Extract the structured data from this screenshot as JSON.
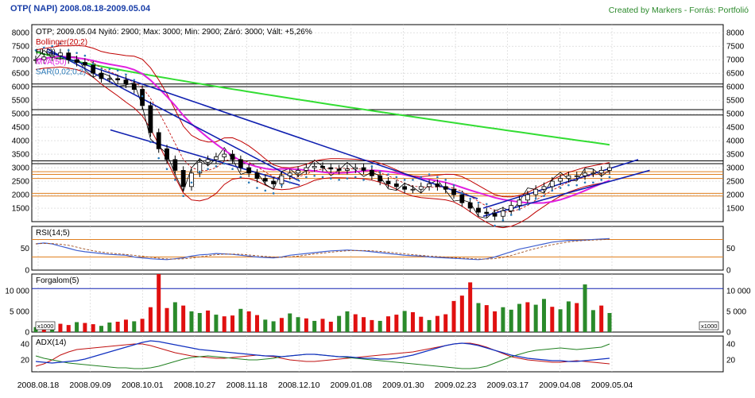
{
  "header": {
    "title": "OTP( NAPI)  2008.08.18-2009.05.04",
    "credit": "Created by Markers - Forrás: Portfolió"
  },
  "colors": {
    "title": "#1a3fa8",
    "credit": "#2c8a2c",
    "panel_border": "#000000",
    "grid": "#cfcfcf",
    "candle_up": "#ffffff",
    "candle_down": "#000000",
    "bollinger": "#c00000",
    "hl2": "#000000",
    "mva50": "#e020e0",
    "sar": "#2a7ab8",
    "long_ma": "#33dd33",
    "trend_blue": "#1020b0",
    "support": "#e08020",
    "rsi_line": "#4060d0",
    "rsi_signal": "#a05020",
    "volume_up": "#2a8a2a",
    "volume_down": "#e01010",
    "adx": "#1030c0",
    "di_plus": "#208020",
    "di_minus": "#c01010"
  },
  "chart_data": [
    {
      "id": "price",
      "type": "candlestick",
      "info_line": "OTP; 2009.05.04 Nyitó: 2900; Max: 3000; Min: 2900; Záró: 3000; Vált: +5,26%",
      "legend": [
        "Bollinger(20;2)",
        "HL(2)",
        "MVA(50)",
        "SAR(0,02;0,2)"
      ],
      "yticks": [
        1500,
        2000,
        2500,
        3000,
        3500,
        4000,
        4500,
        5000,
        5500,
        6000,
        6500,
        7000,
        7500,
        8000
      ],
      "ylim": [
        1000,
        8300
      ],
      "horizontal_levels_black": [
        6100,
        6000,
        5150,
        4950,
        3250,
        3150
      ],
      "horizontal_levels_orange": [
        2850,
        2750,
        2600,
        2050,
        1950
      ],
      "close_approx": [
        7000,
        7100,
        7150,
        7250,
        7000,
        6900,
        6800,
        6500,
        6300,
        6300,
        6250,
        6100,
        5900,
        5300,
        4300,
        3700,
        3300,
        2900,
        2300,
        2800,
        3200,
        3300,
        3400,
        3500,
        3300,
        3000,
        2800,
        2600,
        2500,
        2400,
        2700,
        2800,
        2900,
        3000,
        3050,
        3000,
        2950,
        2900,
        2950,
        3000,
        2900,
        2700,
        2500,
        2400,
        2300,
        2200,
        2200,
        2300,
        2400,
        2300,
        2200,
        2000,
        1700,
        1500,
        1350,
        1300,
        1200,
        1400,
        1600,
        1800,
        2000,
        2200,
        2300,
        2500,
        2600,
        2700,
        2700,
        2800,
        2800,
        2900,
        3000
      ]
    },
    {
      "id": "rsi",
      "type": "line",
      "title": "RSI(14;5)",
      "yticks": [
        0,
        50
      ],
      "ylim": [
        0,
        100
      ],
      "levels": [
        30,
        70
      ],
      "values_approx": [
        60,
        62,
        60,
        55,
        50,
        45,
        42,
        40,
        38,
        36,
        35,
        34,
        30,
        28,
        26,
        25,
        24,
        26,
        28,
        32,
        35,
        36,
        38,
        37,
        36,
        34,
        32,
        30,
        29,
        28,
        30,
        34,
        36,
        38,
        40,
        42,
        44,
        45,
        46,
        45,
        44,
        42,
        40,
        38,
        36,
        34,
        33,
        32,
        30,
        29,
        28,
        27,
        26,
        25,
        24,
        26,
        30,
        36,
        42,
        48,
        52,
        56,
        60,
        64,
        66,
        68,
        68,
        69,
        70,
        71,
        72
      ]
    },
    {
      "id": "volume",
      "type": "bar",
      "title": "Forgalom(5)",
      "yticks": [
        "0",
        "5 000",
        "10 000"
      ],
      "ylim": [
        0,
        14000
      ],
      "level": 10500,
      "unit_tag": "x1000",
      "values_approx": [
        1200,
        1800,
        1500,
        2000,
        1700,
        2400,
        2200,
        1900,
        1500,
        2300,
        2500,
        3000,
        2600,
        3200,
        6000,
        14000,
        5800,
        7200,
        6400,
        5000,
        4600,
        5200,
        4200,
        3800,
        4000,
        5600,
        5000,
        4100,
        3000,
        2600,
        3400,
        4500,
        3600,
        3300,
        2700,
        3200,
        2500,
        3900,
        5000,
        4300,
        3600,
        2900,
        2700,
        3800,
        4200,
        5100,
        4800,
        3700,
        2900,
        3900,
        4300,
        7500,
        8800,
        12000,
        7000,
        6500,
        5000,
        6000,
        5400,
        6800,
        7200,
        6600,
        8000,
        6100,
        5500,
        7400,
        7000,
        11500,
        5300,
        6400,
        4600
      ],
      "up_flags": [
        1,
        0,
        1,
        0,
        0,
        1,
        0,
        0,
        1,
        1,
        0,
        0,
        1,
        0,
        0,
        0,
        0,
        1,
        0,
        1,
        1,
        0,
        1,
        0,
        0,
        1,
        0,
        0,
        1,
        1,
        0,
        1,
        1,
        0,
        1,
        0,
        0,
        1,
        1,
        0,
        0,
        0,
        1,
        0,
        0,
        1,
        0,
        0,
        1,
        0,
        0,
        0,
        0,
        0,
        1,
        0,
        0,
        1,
        1,
        1,
        0,
        1,
        1,
        0,
        1,
        1,
        0,
        1,
        1,
        0,
        1
      ]
    },
    {
      "id": "adx",
      "type": "line",
      "title": "ADX(14)",
      "yticks": [
        20,
        40
      ],
      "ylim": [
        5,
        50
      ],
      "adx_approx": [
        18,
        17,
        16,
        17,
        18,
        19,
        21,
        24,
        27,
        30,
        33,
        36,
        39,
        42,
        44,
        43,
        41,
        39,
        37,
        35,
        33,
        32,
        31,
        30,
        29,
        28,
        27,
        26,
        25,
        25,
        24,
        25,
        26,
        27,
        27,
        26,
        25,
        24,
        24,
        23,
        22,
        22,
        21,
        21,
        22,
        24,
        26,
        29,
        32,
        35,
        38,
        40,
        41,
        40,
        38,
        35,
        32,
        29,
        26,
        24,
        22,
        21,
        20,
        19,
        19,
        18,
        18,
        19,
        20,
        21,
        22
      ],
      "di_plus_approx": [
        25,
        22,
        20,
        18,
        16,
        15,
        14,
        13,
        12,
        11,
        10,
        10,
        9,
        9,
        10,
        12,
        15,
        18,
        21,
        23,
        24,
        25,
        24,
        23,
        22,
        21,
        20,
        20,
        21,
        22,
        24,
        25,
        26,
        27,
        27,
        26,
        25,
        24,
        23,
        22,
        21,
        20,
        19,
        18,
        17,
        16,
        15,
        14,
        13,
        12,
        11,
        10,
        9,
        9,
        10,
        12,
        16,
        20,
        24,
        27,
        30,
        32,
        33,
        34,
        35,
        34,
        33,
        34,
        35,
        36,
        40
      ],
      "di_minus_approx": [
        12,
        15,
        20,
        26,
        30,
        33,
        34,
        35,
        36,
        37,
        38,
        39,
        40,
        40,
        38,
        35,
        32,
        29,
        27,
        25,
        24,
        23,
        22,
        22,
        23,
        24,
        25,
        26,
        25,
        24,
        22,
        20,
        19,
        18,
        18,
        19,
        20,
        21,
        22,
        23,
        24,
        25,
        26,
        27,
        28,
        29,
        30,
        32,
        34,
        36,
        38,
        40,
        41,
        41,
        39,
        36,
        32,
        28,
        24,
        22,
        20,
        19,
        18,
        17,
        17,
        18,
        19,
        18,
        17,
        16,
        15
      ]
    }
  ],
  "x_axis": {
    "labels": [
      "2008.08.18",
      "2008.09.09",
      "2008.10.01",
      "2008.10.27",
      "2008.11.18",
      "2008.12.10",
      "2009.01.08",
      "2009.01.30",
      "2009.02.23",
      "2009.03.17",
      "2009.04.08",
      "2009.05.04"
    ]
  }
}
